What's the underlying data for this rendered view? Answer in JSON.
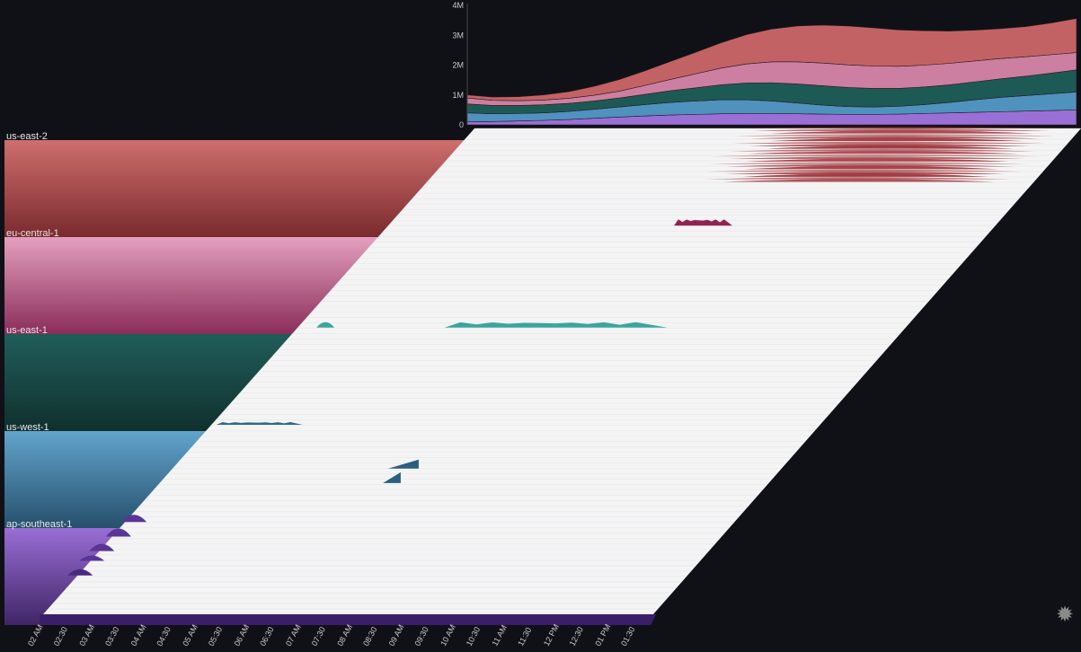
{
  "chart_data": {
    "type": "area",
    "summary_chart": {
      "type": "area",
      "stacked": true,
      "ytick_labels": [
        "0",
        "1M",
        "2M",
        "3M",
        "4M"
      ],
      "ylim": [
        0,
        4000000
      ],
      "x": [
        0,
        1,
        2,
        3,
        4,
        5,
        6,
        7,
        8,
        9,
        10,
        11,
        12,
        13,
        14,
        15,
        16,
        17,
        18,
        19,
        20,
        21,
        22,
        23,
        24
      ],
      "series": [
        {
          "name": "ap-southeast-1",
          "color": "#9a6fd6",
          "values": [
            100000,
            110000,
            130000,
            150000,
            180000,
            220000,
            260000,
            300000,
            330000,
            350000,
            370000,
            380000,
            380000,
            370000,
            360000,
            350000,
            350000,
            360000,
            380000,
            400000,
            420000,
            440000,
            460000,
            480000,
            500000
          ]
        },
        {
          "name": "us-west-1",
          "color": "#4f92be",
          "values": [
            300000,
            260000,
            250000,
            250000,
            270000,
            300000,
            340000,
            380000,
            420000,
            450000,
            470000,
            460000,
            420000,
            360000,
            300000,
            260000,
            250000,
            260000,
            300000,
            350000,
            420000,
            480000,
            520000,
            560000,
            600000
          ]
        },
        {
          "name": "us-east-1",
          "color": "#1e5a55",
          "values": [
            300000,
            280000,
            270000,
            270000,
            270000,
            280000,
            300000,
            340000,
            390000,
            440000,
            500000,
            560000,
            610000,
            640000,
            650000,
            640000,
            620000,
            600000,
            590000,
            590000,
            600000,
            620000,
            650000,
            690000,
            740000
          ]
        },
        {
          "name": "eu-central-1",
          "color": "#cc7fa0",
          "values": [
            200000,
            170000,
            160000,
            160000,
            170000,
            190000,
            230000,
            300000,
            380000,
            470000,
            560000,
            640000,
            700000,
            740000,
            760000,
            760000,
            750000,
            740000,
            730000,
            720000,
            700000,
            680000,
            650000,
            620000,
            580000
          ]
        },
        {
          "name": "us-east-2",
          "color": "#c36264",
          "values": [
            100000,
            110000,
            130000,
            170000,
            220000,
            300000,
            390000,
            490000,
            600000,
            720000,
            850000,
            980000,
            1100000,
            1200000,
            1270000,
            1300000,
            1280000,
            1220000,
            1150000,
            1080000,
            1030000,
            1000000,
            1010000,
            1060000,
            1140000
          ]
        }
      ]
    },
    "band_labels": [
      "us-east-2",
      "eu-central-1",
      "us-east-1",
      "us-west-1",
      "ap-southeast-1"
    ],
    "band_colors": [
      [
        "#cf6e6d",
        "#7a2a2e"
      ],
      [
        "#e4a0bf",
        "#8a2d5a"
      ],
      [
        "#205d59",
        "#10302e"
      ],
      [
        "#62a4cc",
        "#26506c"
      ],
      [
        "#9a6ed6",
        "#3f2566"
      ]
    ],
    "surface": {
      "time_ticks": [
        "02 AM",
        "02:30",
        "03 AM",
        "03:30",
        "04 AM",
        "04:30",
        "05 AM",
        "05:30",
        "06 AM",
        "06:30",
        "07 AM",
        "07:30",
        "08 AM",
        "08:30",
        "09 AM",
        "09:30",
        "10 AM",
        "10:30",
        "11 AM",
        "11:30",
        "12 PM",
        "12:30",
        "01 PM",
        "01:30"
      ],
      "plane_color": "#f4f4f5",
      "features": [
        {
          "region": "us-east-2",
          "color": "#9b2c33",
          "kind": "dense",
          "t0": 10.3,
          "t1": 23.4,
          "row0": 0.0,
          "row1": 0.11
        },
        {
          "region": "eu-central-1",
          "color": "#8f2450",
          "kind": "ridge",
          "t0": 11.3,
          "t1": 13.6,
          "row": 0.2,
          "height": 7
        },
        {
          "region": "us-east-1",
          "color": "#3aa59d",
          "kind": "ridge",
          "t0": 5.8,
          "t1": 14.6,
          "row": 0.41,
          "height": 6
        },
        {
          "region": "us-east-1",
          "color": "#3aa59d",
          "kind": "bump",
          "t": 1.1,
          "row": 0.41,
          "height": 6
        },
        {
          "region": "us-west-1",
          "color": "#2e6a8c",
          "kind": "ridge",
          "t0": 0.2,
          "t1": 3.6,
          "row": 0.61,
          "height": 3
        },
        {
          "region": "us-west-1",
          "color": "#2b5f80",
          "kind": "wedge",
          "t0": 8.5,
          "t1": 9.7,
          "row": 0.7,
          "height": 10
        },
        {
          "region": "us-west-1",
          "color": "#2b5f80",
          "kind": "wedge",
          "t0": 8.8,
          "t1": 9.5,
          "row": 0.73,
          "height": 12
        },
        {
          "region": "ap-southeast-1",
          "color": "#5a3596",
          "kind": "peak",
          "t": 0.35,
          "row": 0.81,
          "height": 8
        },
        {
          "region": "ap-southeast-1",
          "color": "#5a3596",
          "kind": "peak",
          "t": 0.25,
          "row": 0.84,
          "height": 9
        },
        {
          "region": "ap-southeast-1",
          "color": "#5a3596",
          "kind": "peak",
          "t": 0.1,
          "row": 0.87,
          "height": 8
        },
        {
          "region": "ap-southeast-1",
          "color": "#5a3596",
          "kind": "peak",
          "t": 0.05,
          "row": 0.89,
          "height": 6
        },
        {
          "region": "ap-southeast-1",
          "color": "#4a2a80",
          "kind": "peak",
          "t": 0.1,
          "row": 0.92,
          "height": 7
        },
        {
          "region": "ap-southeast-1",
          "color": "#3b1e6a",
          "kind": "floor",
          "t0": 0.0,
          "t1": 23.9,
          "row": 1.0
        }
      ]
    }
  },
  "controls": {
    "settings_icon": "gear-icon",
    "settings_glyph": "✹"
  }
}
